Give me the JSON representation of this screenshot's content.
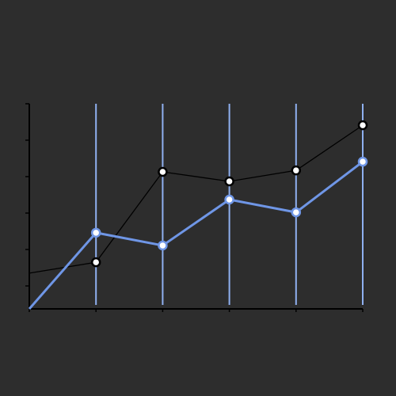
{
  "chart_data": {
    "type": "line",
    "x": [
      0,
      1,
      2,
      3,
      4,
      5
    ],
    "xlim": [
      0,
      5
    ],
    "xticks": [
      0,
      1,
      2,
      3,
      4,
      5
    ],
    "ylim": [
      -0.63,
      5
    ],
    "yticks": [
      0,
      1,
      2,
      3,
      4,
      5
    ],
    "grid_color": "#8fb0f0",
    "series": [
      {
        "color": "#6f96e6",
        "values": [
          -0.63,
          1.46,
          1.11,
          2.37,
          2.02,
          3.41
        ]
      },
      {
        "color": "#000000",
        "values": [
          0.35,
          0.65,
          3.13,
          2.87,
          3.17,
          4.41
        ]
      }
    ]
  }
}
